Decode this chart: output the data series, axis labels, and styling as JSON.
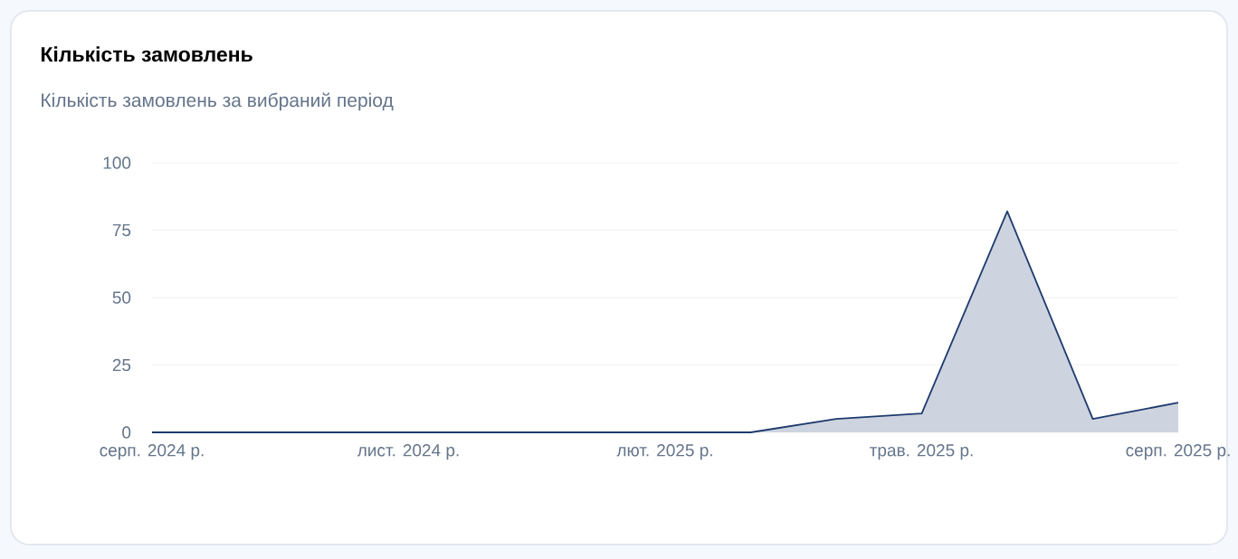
{
  "chart_data": {
    "type": "area",
    "title": "Кількість замовлень",
    "subtitle": "Кількість замовлень за вибраний період",
    "x": [
      "2024-08",
      "2024-09",
      "2024-10",
      "2024-11",
      "2024-12",
      "2025-01",
      "2025-02",
      "2025-03",
      "2025-04",
      "2025-05",
      "2025-06",
      "2025-07",
      "2025-08"
    ],
    "values": [
      0,
      0,
      0,
      0,
      0,
      0,
      0,
      0,
      5,
      7,
      82,
      5,
      11
    ],
    "color": "#1e3a6e",
    "xlim": [
      "2024-08",
      "2025-08"
    ],
    "xticks": [
      {
        "value": "2024-08",
        "label": "серп. 2024 р."
      },
      {
        "value": "2024-11",
        "label": "лист. 2024 р."
      },
      {
        "value": "2025-02",
        "label": "лют. 2025 р."
      },
      {
        "value": "2025-05",
        "label": "трав. 2025 р."
      },
      {
        "value": "2025-08",
        "label": "серп. 2025 р."
      }
    ],
    "ylim": [
      0,
      100
    ],
    "yticks": [
      0,
      25,
      50,
      75,
      100
    ],
    "grid": "y"
  }
}
